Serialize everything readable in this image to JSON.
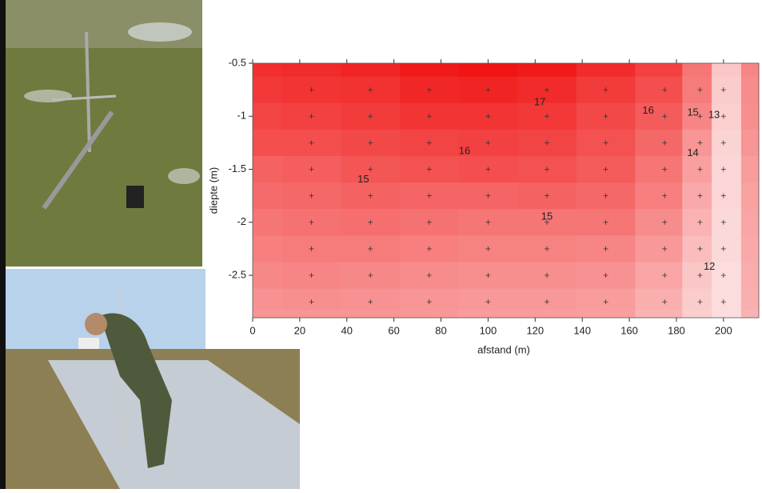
{
  "chart_data": {
    "type": "contour",
    "xlabel": "afstand (m)",
    "ylabel": "diepte (m)",
    "x": [
      0,
      25,
      50,
      75,
      100,
      125,
      150,
      175,
      190,
      200,
      215
    ],
    "y": [
      -0.5,
      -0.75,
      -1,
      -1.25,
      -1.5,
      -1.75,
      -2,
      -2.25,
      -2.5,
      -2.75,
      -2.9
    ],
    "z": [
      [
        17.2,
        17.3,
        17.5,
        17.8,
        18.0,
        17.8,
        17.3,
        16.6,
        15.0,
        12.5,
        14.5
      ],
      [
        16.9,
        17.0,
        17.1,
        17.4,
        17.5,
        17.3,
        16.8,
        16.2,
        14.8,
        12.3,
        14.3
      ],
      [
        16.5,
        16.6,
        16.8,
        17.0,
        17.0,
        16.9,
        16.4,
        15.8,
        14.5,
        12.2,
        14.2
      ],
      [
        16.2,
        16.2,
        16.4,
        16.5,
        16.6,
        16.5,
        16.1,
        15.4,
        14.0,
        12.1,
        14.0
      ],
      [
        15.6,
        15.7,
        16.0,
        16.1,
        16.2,
        16.1,
        15.8,
        15.0,
        13.7,
        12.0,
        13.8
      ],
      [
        15.3,
        15.4,
        15.6,
        15.5,
        15.5,
        15.6,
        15.4,
        14.7,
        13.4,
        12.0,
        13.6
      ],
      [
        15.0,
        15.1,
        15.2,
        15.1,
        15.0,
        15.0,
        15.0,
        14.3,
        13.1,
        11.9,
        13.5
      ],
      [
        14.7,
        14.8,
        14.8,
        14.7,
        14.6,
        14.6,
        14.5,
        13.9,
        12.8,
        11.9,
        13.4
      ],
      [
        14.4,
        14.5,
        14.4,
        14.3,
        14.2,
        14.2,
        14.1,
        13.5,
        12.5,
        11.8,
        13.3
      ],
      [
        14.1,
        14.2,
        14.1,
        14.0,
        13.9,
        13.9,
        13.8,
        13.2,
        12.3,
        11.8,
        13.2
      ],
      [
        14.0,
        14.0,
        14.0,
        13.9,
        13.8,
        13.8,
        13.7,
        13.1,
        12.2,
        11.8,
        13.1
      ]
    ],
    "zlim": [
      11.5,
      18
    ],
    "color_low": "#fde6e6",
    "color_high": "#f01414",
    "contour_labels": [
      {
        "value": 17,
        "x": 122,
        "y": -0.87
      },
      {
        "value": 16,
        "x": 90,
        "y": -1.33
      },
      {
        "value": 16,
        "x": 168,
        "y": -0.95
      },
      {
        "value": 15,
        "x": 47,
        "y": -1.6
      },
      {
        "value": 15,
        "x": 125,
        "y": -1.95
      },
      {
        "value": 15,
        "x": 187,
        "y": -0.97
      },
      {
        "value": 14,
        "x": 187,
        "y": -1.35
      },
      {
        "value": 13,
        "x": 196,
        "y": -0.99
      },
      {
        "value": 12,
        "x": 194,
        "y": -2.42
      }
    ],
    "xlim": [
      0,
      215
    ],
    "ylim": [
      -2.9,
      -0.5
    ],
    "xticks": [
      0,
      20,
      40,
      60,
      80,
      100,
      120,
      140,
      160,
      180,
      200
    ],
    "yticks": [
      -0.5,
      -1,
      -1.5,
      -2,
      -2.5
    ]
  }
}
